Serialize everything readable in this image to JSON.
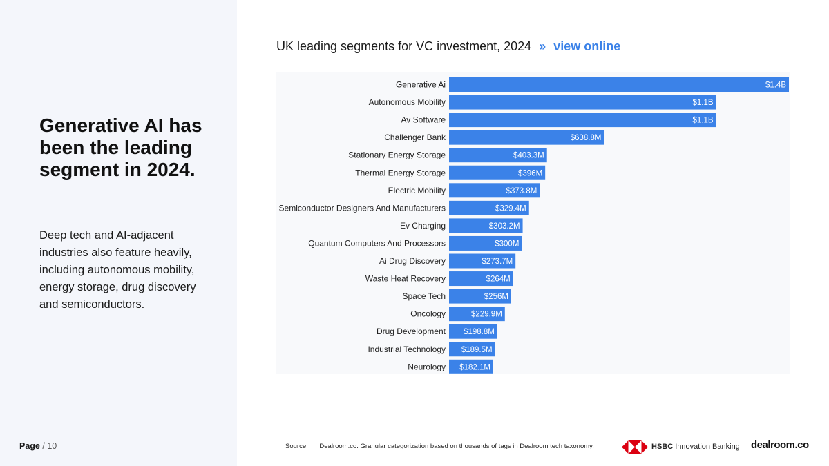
{
  "left": {
    "headline": "Generative AI has been the leading segment in 2024.",
    "body": "Deep tech and AI-adjacent industries also feature heavily, including autonomous mobility, energy storage, drug discovery and semiconductors."
  },
  "page": {
    "label": "Page",
    "separator": "/",
    "number": "10"
  },
  "chart_header": {
    "title": "UK leading segments for VC investment, 2024",
    "chevron": "»",
    "link": "view online"
  },
  "footer": {
    "source_label": "Source:",
    "source_text": "Dealroom.co. Granular categorization based on thousands of tags in Dealroom tech taxonomy."
  },
  "logos": {
    "hsbc_bold": "HSBC",
    "hsbc_rest": "Innovation Banking",
    "dealroom": "dealroom.co"
  },
  "colors": {
    "bar": "#3b82e8",
    "panel": "#f4f6fb",
    "accent": "#3b82e8"
  },
  "chart_data": {
    "type": "bar",
    "orientation": "horizontal",
    "title": "UK leading segments for VC investment, 2024",
    "unit": "USD millions",
    "categories": [
      "Generative Ai",
      "Autonomous Mobility",
      "Av Software",
      "Challenger Bank",
      "Stationary Energy Storage",
      "Thermal Energy Storage",
      "Electric Mobility",
      "Semiconductor Designers And Manufacturers",
      "Ev Charging",
      "Quantum Computers And Processors",
      "Ai Drug Discovery",
      "Waste Heat Recovery",
      "Space Tech",
      "Oncology",
      "Drug Development",
      "Industrial Technology",
      "Neurology"
    ],
    "values": [
      1400,
      1100,
      1100,
      638.8,
      403.3,
      396,
      373.8,
      329.4,
      303.2,
      300,
      273.7,
      264,
      256,
      229.9,
      198.8,
      189.5,
      182.1
    ],
    "labels": [
      "$1.4B",
      "$1.1B",
      "$1.1B",
      "$638.8M",
      "$403.3M",
      "$396M",
      "$373.8M",
      "$329.4M",
      "$303.2M",
      "$300M",
      "$273.7M",
      "$264M",
      "$256M",
      "$229.9M",
      "$198.8M",
      "$189.5M",
      "$182.1M"
    ],
    "xlim": [
      0,
      1400
    ],
    "grid": false,
    "legend": "none"
  }
}
